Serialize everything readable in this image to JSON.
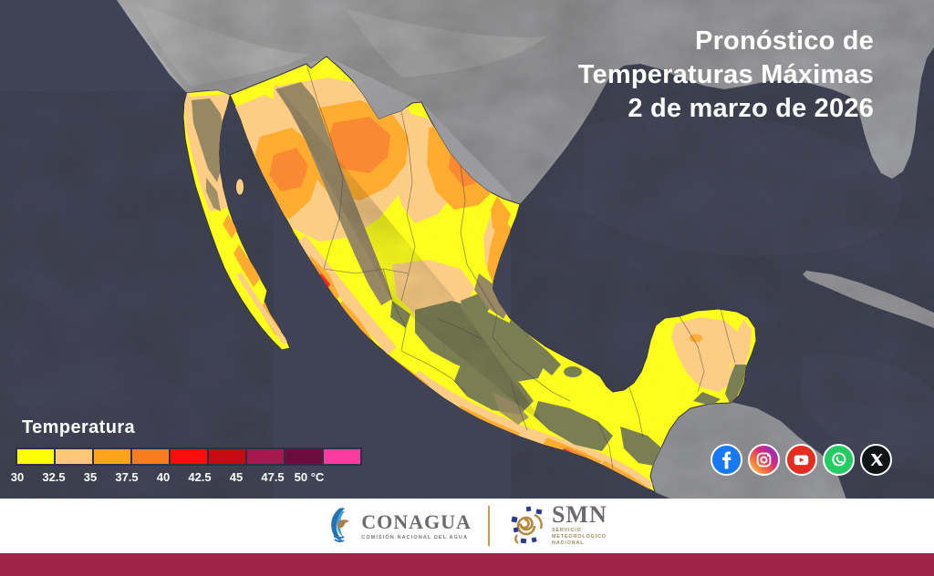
{
  "header": {
    "title_lines": [
      "Pronóstico de",
      "Temperaturas Máximas",
      "2 de marzo de 2026"
    ]
  },
  "legend": {
    "title": "Temperatura",
    "unit": "°C",
    "stops": [
      {
        "label": "30",
        "color": "#FCFE03"
      },
      {
        "label": "32.5",
        "color": "#FBC878"
      },
      {
        "label": "35",
        "color": "#FFA319"
      },
      {
        "label": "37.5",
        "color": "#F97D1C"
      },
      {
        "label": "40",
        "color": "#FB0D0C"
      },
      {
        "label": "42.5",
        "color": "#C60C13"
      },
      {
        "label": "45",
        "color": "#A6194F"
      },
      {
        "label": "47.5",
        "color": "#6D0D3D"
      },
      {
        "label": "50",
        "color": "#FA3CA0"
      }
    ]
  },
  "map": {
    "ocean_color": "#2C2F43",
    "foreign_land_color": "#969698",
    "terrain_olive": "#6B7040",
    "terrain_brown": "#8C7A52"
  },
  "social": {
    "icons": [
      {
        "name": "facebook",
        "color": "#1877F2"
      },
      {
        "name": "instagram",
        "color": "linear-gradient(45deg,#FFD056 5%,#F77737 30%,#D62976 60%,#962FBF 85%,#4F5BD5 100%)"
      },
      {
        "name": "youtube",
        "color": "#E42C20"
      },
      {
        "name": "whatsapp",
        "color": "#24CC63"
      },
      {
        "name": "x",
        "color": "#121417"
      }
    ]
  },
  "footer": {
    "conagua_name": "CONAGUA",
    "conagua_tagline": "COMISIÓN NACIONAL DEL AGUA",
    "smn_name": "SMN",
    "smn_tagline_lines": [
      "SERVICIO",
      "METEOROLÓGICO",
      "NACIONAL"
    ],
    "bar_color": "#9D2148"
  }
}
